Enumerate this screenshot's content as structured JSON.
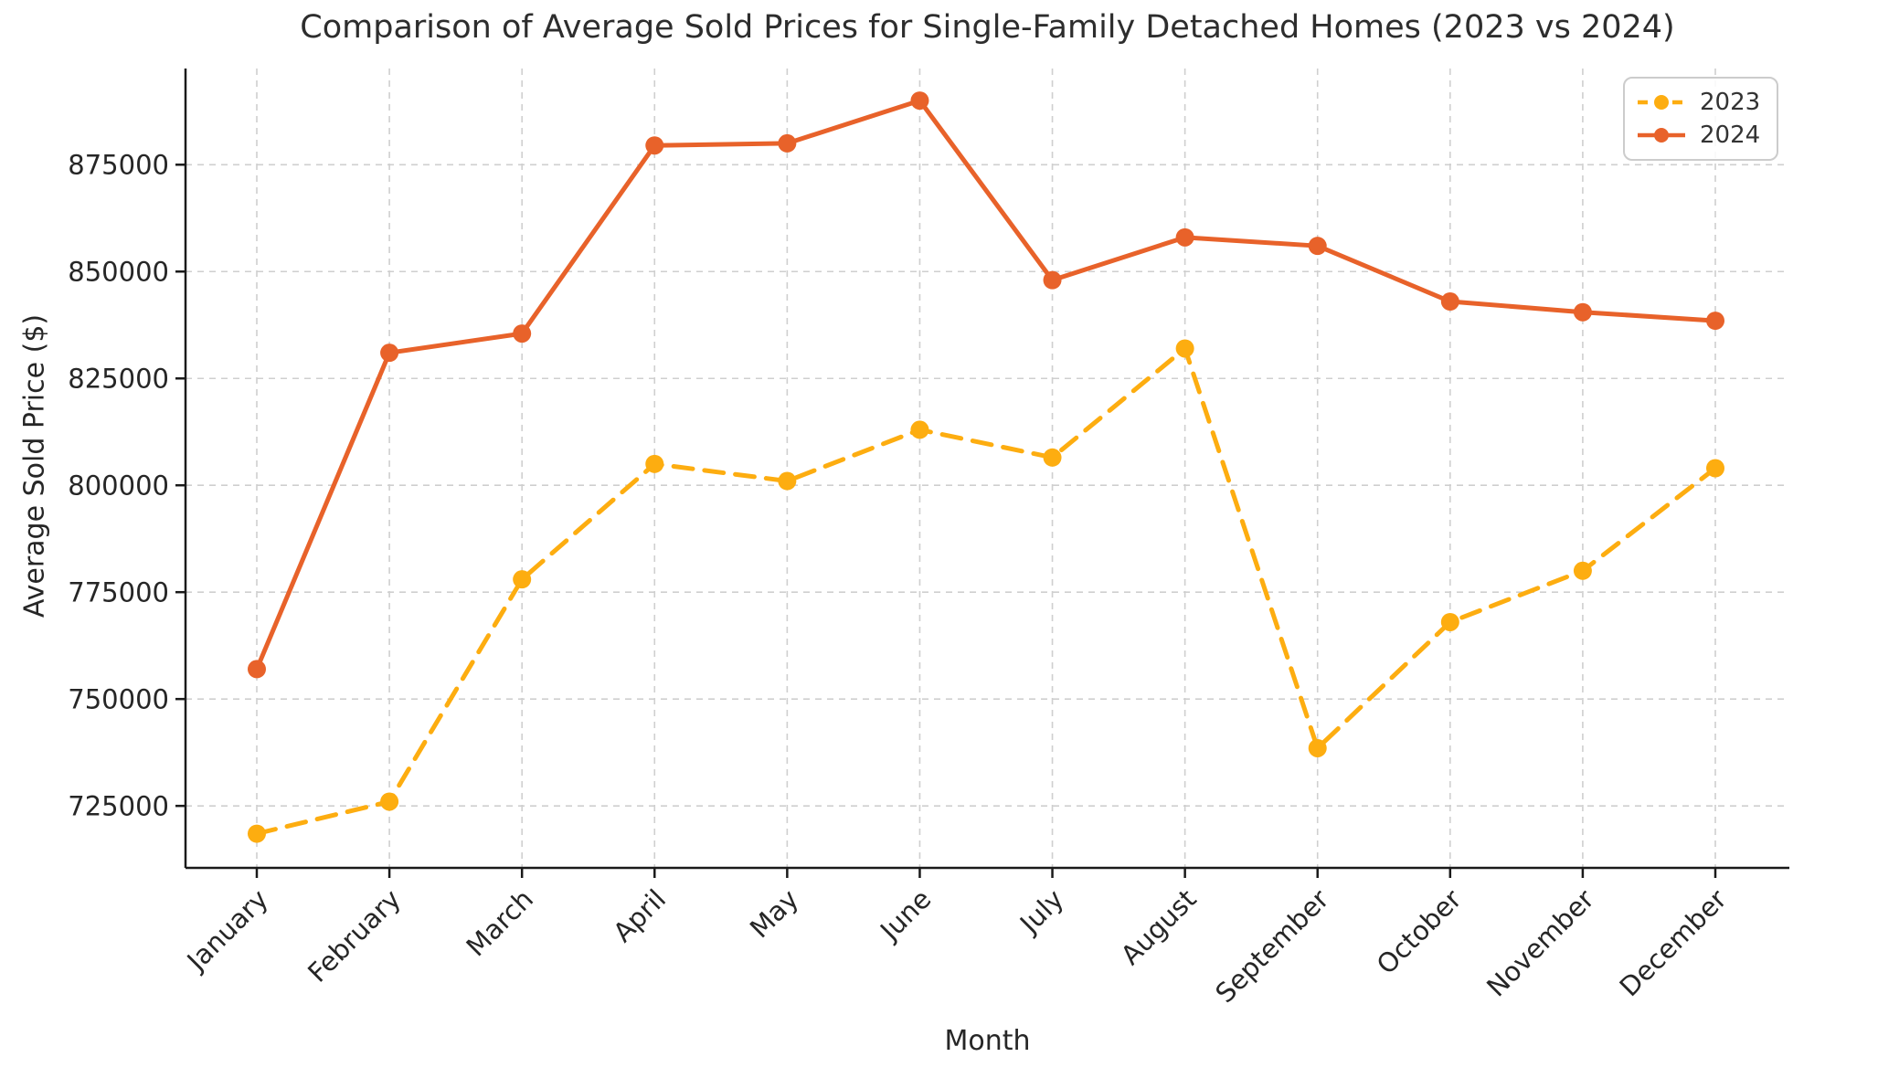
{
  "title": "Comparison of Average Sold Prices for Single-Family Detached Homes (2023 vs 2024)",
  "chart_data": {
    "type": "line",
    "title": "Comparison of Average Sold Prices for Single-Family Detached Homes (2023 vs 2024)",
    "xlabel": "Month",
    "ylabel": "Average Sold Price ($)",
    "categories": [
      "January",
      "February",
      "March",
      "April",
      "May",
      "June",
      "July",
      "August",
      "September",
      "October",
      "November",
      "December"
    ],
    "series": [
      {
        "name": "2023",
        "color": "#FDAD10",
        "style": "dashed",
        "marker": "circle",
        "values": [
          718500,
          726000,
          778000,
          805000,
          801000,
          813000,
          806500,
          832000,
          738500,
          768000,
          780000,
          804000
        ]
      },
      {
        "name": "2024",
        "color": "#E8622A",
        "style": "solid",
        "marker": "circle",
        "values": [
          757000,
          831000,
          835500,
          879500,
          880000,
          890000,
          848000,
          858000,
          856000,
          843000,
          840500,
          838500
        ]
      }
    ],
    "ylim": [
      710500,
      897500
    ],
    "yticks": [
      725000,
      750000,
      775000,
      800000,
      825000,
      850000,
      875000
    ],
    "grid": true,
    "grid_style": "dashed",
    "legend_position": "upper right",
    "x_tick_rotation_deg": 45
  },
  "palette": {
    "grid": "#cfcfcf",
    "spine": "#1a1a1a",
    "tick_label": "#262626",
    "title_text": "#2d2d2d",
    "legend_border": "#cccccc"
  }
}
